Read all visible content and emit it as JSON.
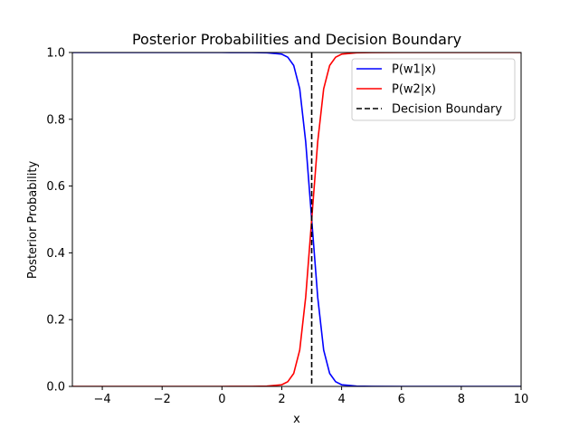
{
  "chart_data": {
    "type": "line",
    "title": "Posterior Probabilities and Decision Boundary",
    "xlabel": "x",
    "ylabel": "Posterior Probability",
    "xlim": [
      -5,
      10
    ],
    "ylim": [
      0,
      1
    ],
    "xticks": [
      -4,
      -2,
      0,
      2,
      4,
      6,
      8,
      10
    ],
    "yticks": [
      0.0,
      0.2,
      0.4,
      0.6,
      0.8,
      1.0
    ],
    "xtick_labels": [
      "−4",
      "−2",
      "0",
      "2",
      "4",
      "6",
      "8",
      "10"
    ],
    "ytick_labels": [
      "0.0",
      "0.2",
      "0.4",
      "0.6",
      "0.8",
      "1.0"
    ],
    "grid": false,
    "legend_position": "top-right",
    "x": [
      -5,
      -4,
      -3,
      -2,
      -1,
      0,
      0.5,
      1,
      1.5,
      2,
      2.2,
      2.4,
      2.6,
      2.8,
      3,
      3.2,
      3.4,
      3.6,
      3.8,
      4,
      4.5,
      5,
      6,
      7,
      8,
      9,
      10
    ],
    "series": [
      {
        "name": "P(w1|x)",
        "color": "#0000ff",
        "linestyle": "solid",
        "values": [
          1,
          1,
          1,
          1,
          1,
          1,
          0.9999,
          0.9997,
          0.999,
          0.995,
          0.986,
          0.961,
          0.891,
          0.732,
          0.5,
          0.268,
          0.109,
          0.039,
          0.014,
          0.005,
          0.001,
          0.0002,
          0,
          0,
          0,
          0,
          0
        ]
      },
      {
        "name": "P(w2|x)",
        "color": "#ff0000",
        "linestyle": "solid",
        "values": [
          0,
          0,
          0,
          0,
          0,
          0,
          0.0001,
          0.0003,
          0.001,
          0.005,
          0.014,
          0.039,
          0.109,
          0.268,
          0.5,
          0.732,
          0.891,
          0.961,
          0.986,
          0.995,
          0.999,
          0.9998,
          1,
          1,
          1,
          1,
          1
        ]
      }
    ],
    "vlines": [
      {
        "name": "Decision Boundary",
        "x": 3,
        "color": "#000000",
        "linestyle": "dashed"
      }
    ]
  }
}
